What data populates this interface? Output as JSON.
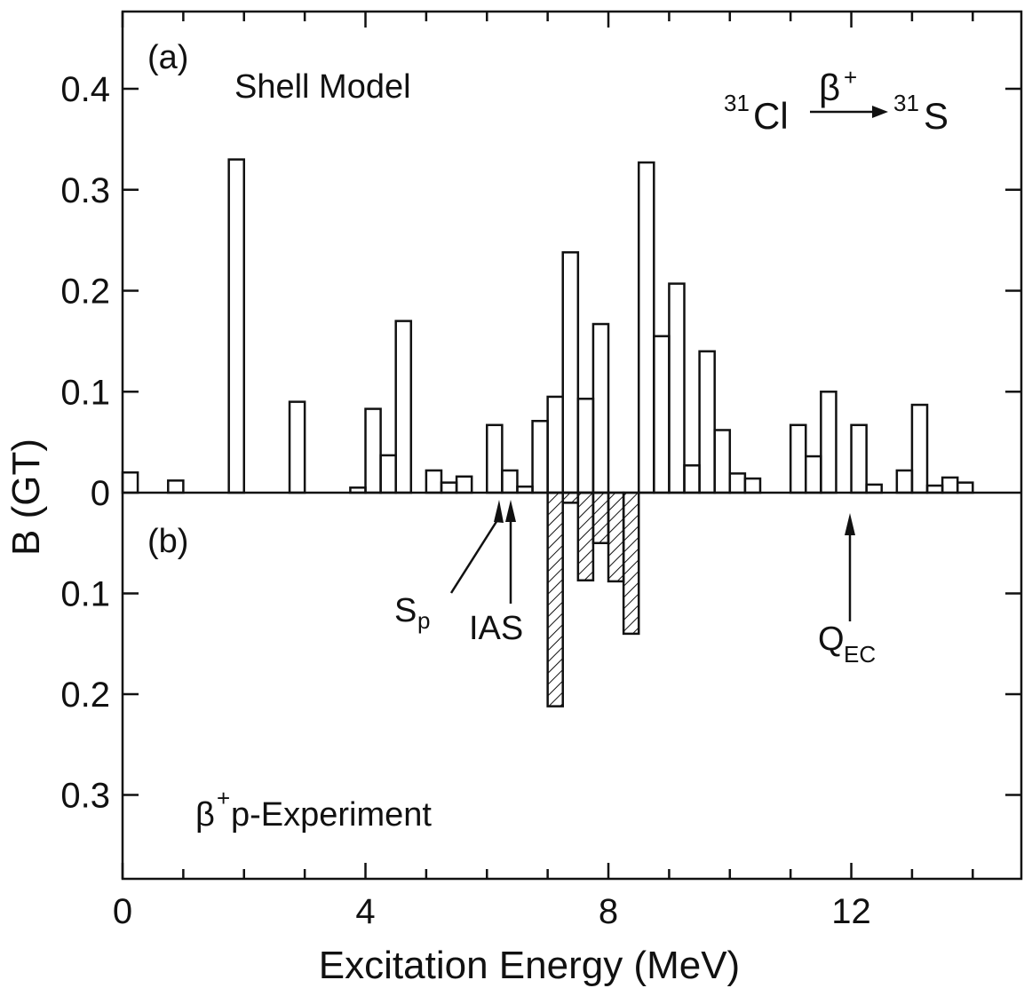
{
  "chart_data": {
    "type": "bar",
    "xlabel": "Excitation Energy (MeV)",
    "ylabel": "B (GT)",
    "xlim": [
      0,
      14.8
    ],
    "ylim_top": [
      0,
      0.4
    ],
    "ylim_bottom": [
      0,
      0.3
    ],
    "x_ticks": [
      "0",
      "4",
      "8",
      "12"
    ],
    "y_ticks_top": [
      "0.4",
      "0.3",
      "0.2",
      "0.1",
      "0"
    ],
    "y_ticks_bottom": [
      "0.1",
      "0.2",
      "0.3"
    ],
    "grid": false,
    "panels": [
      {
        "label": "(a)",
        "name": "Shell Model",
        "reaction": {
          "parent_mass": "31",
          "parent": "Cl",
          "decay": "β",
          "decay_sign": "+",
          "daughter_mass": "31",
          "daughter": "S"
        },
        "bins": [
          {
            "x0": 0.0,
            "x1": 0.25,
            "value": 0.02
          },
          {
            "x0": 0.75,
            "x1": 1.0,
            "value": 0.012
          },
          {
            "x0": 1.75,
            "x1": 2.0,
            "value": 0.33
          },
          {
            "x0": 2.75,
            "x1": 3.0,
            "value": 0.09
          },
          {
            "x0": 3.75,
            "x1": 4.0,
            "value": 0.005
          },
          {
            "x0": 4.0,
            "x1": 4.25,
            "value": 0.083
          },
          {
            "x0": 4.25,
            "x1": 4.5,
            "value": 0.037
          },
          {
            "x0": 4.5,
            "x1": 4.75,
            "value": 0.17
          },
          {
            "x0": 5.0,
            "x1": 5.25,
            "value": 0.022
          },
          {
            "x0": 5.25,
            "x1": 5.5,
            "value": 0.01
          },
          {
            "x0": 5.5,
            "x1": 5.75,
            "value": 0.016
          },
          {
            "x0": 6.0,
            "x1": 6.25,
            "value": 0.067
          },
          {
            "x0": 6.25,
            "x1": 6.5,
            "value": 0.022
          },
          {
            "x0": 6.5,
            "x1": 6.75,
            "value": 0.006
          },
          {
            "x0": 6.75,
            "x1": 7.0,
            "value": 0.071
          },
          {
            "x0": 7.0,
            "x1": 7.25,
            "value": 0.095
          },
          {
            "x0": 7.25,
            "x1": 7.5,
            "value": 0.238
          },
          {
            "x0": 7.5,
            "x1": 7.75,
            "value": 0.093
          },
          {
            "x0": 7.75,
            "x1": 8.0,
            "value": 0.167
          },
          {
            "x0": 8.5,
            "x1": 8.75,
            "value": 0.327
          },
          {
            "x0": 8.75,
            "x1": 9.0,
            "value": 0.155
          },
          {
            "x0": 9.0,
            "x1": 9.25,
            "value": 0.207
          },
          {
            "x0": 9.25,
            "x1": 9.5,
            "value": 0.027
          },
          {
            "x0": 9.5,
            "x1": 9.75,
            "value": 0.14
          },
          {
            "x0": 9.75,
            "x1": 10.0,
            "value": 0.062
          },
          {
            "x0": 10.0,
            "x1": 10.25,
            "value": 0.019
          },
          {
            "x0": 10.25,
            "x1": 10.5,
            "value": 0.014
          },
          {
            "x0": 11.0,
            "x1": 11.25,
            "value": 0.067
          },
          {
            "x0": 11.25,
            "x1": 11.5,
            "value": 0.036
          },
          {
            "x0": 11.5,
            "x1": 11.75,
            "value": 0.1
          },
          {
            "x0": 12.0,
            "x1": 12.25,
            "value": 0.067
          },
          {
            "x0": 12.25,
            "x1": 12.5,
            "value": 0.008
          },
          {
            "x0": 12.75,
            "x1": 13.0,
            "value": 0.022
          },
          {
            "x0": 13.0,
            "x1": 13.25,
            "value": 0.087
          },
          {
            "x0": 13.25,
            "x1": 13.5,
            "value": 0.007
          },
          {
            "x0": 13.5,
            "x1": 13.75,
            "value": 0.015
          },
          {
            "x0": 13.75,
            "x1": 14.0,
            "value": 0.01
          }
        ]
      },
      {
        "label": "(b)",
        "name_prefix": "β",
        "name_sup": "+",
        "name": "p-Experiment",
        "fill": "hatched",
        "bins": [
          {
            "x0": 7.0,
            "x1": 7.25,
            "value": 0.212
          },
          {
            "x0": 7.25,
            "x1": 7.5,
            "value": 0.01
          },
          {
            "x0": 7.5,
            "x1": 7.75,
            "value": 0.087
          },
          {
            "x0": 7.75,
            "x1": 8.0,
            "value": 0.05
          },
          {
            "x0": 8.0,
            "x1": 8.25,
            "value": 0.088
          },
          {
            "x0": 8.25,
            "x1": 8.5,
            "value": 0.14
          }
        ]
      }
    ],
    "annotations": [
      {
        "text": "S",
        "subscript": "p",
        "x": 6.2
      },
      {
        "text": "IAS",
        "x": 6.4
      },
      {
        "text": "Q",
        "subscript": "EC",
        "x": 12.0
      }
    ]
  }
}
